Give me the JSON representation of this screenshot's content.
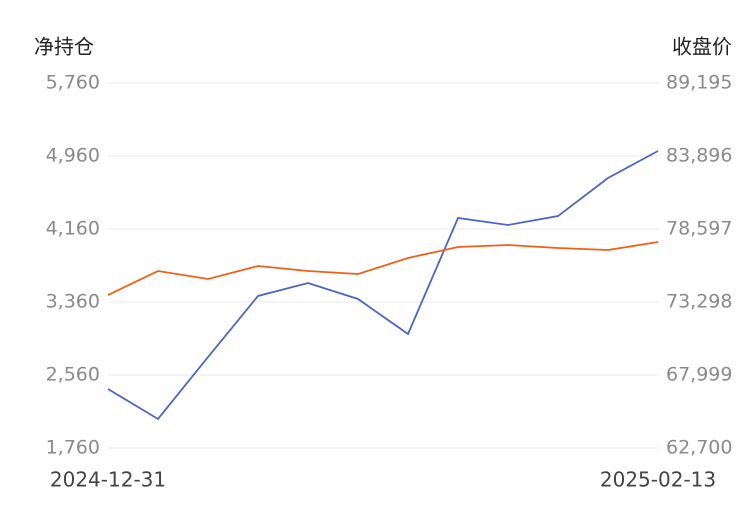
{
  "chart_data": {
    "type": "line",
    "y_label": "净持仓",
    "y2_label": "收盘价",
    "categories": [
      "2024-12-31",
      null,
      null,
      null,
      null,
      null,
      null,
      null,
      null,
      null,
      null,
      "2025-02-13"
    ],
    "series": [
      {
        "color": "#4a66c2",
        "values": [
          2407,
          2078,
          2757,
          3426,
          3568,
          3393,
          3009,
          4281,
          4204,
          4302,
          4719,
          5015
        ]
      },
      {
        "color": "#f06018",
        "axis": "y2",
        "values": [
          73806,
          75548,
          74967,
          75911,
          75548,
          75330,
          76492,
          77290,
          77435,
          77218,
          77072,
          77653
        ]
      }
    ],
    "ylim": [
      1760,
      5760
    ],
    "yticks": [
      {
        "value": 1760,
        "label": "1,760"
      },
      {
        "value": 2560,
        "label": "2,560"
      },
      {
        "value": 3360,
        "label": "3,360"
      },
      {
        "value": 4160,
        "label": "4,160"
      },
      {
        "value": 4960,
        "label": "4,960"
      },
      {
        "value": 5760,
        "label": "5,760"
      }
    ],
    "y2lim": [
      62700,
      89195
    ],
    "y2ticks": [
      {
        "value": 62700,
        "label": "62,700"
      },
      {
        "value": 67999,
        "label": "67,999"
      },
      {
        "value": 73298,
        "label": "73,298"
      },
      {
        "value": 78597,
        "label": "78,597"
      },
      {
        "value": 83896,
        "label": "83,896"
      },
      {
        "value": 89195,
        "label": "89,195"
      }
    ],
    "grid": true
  }
}
